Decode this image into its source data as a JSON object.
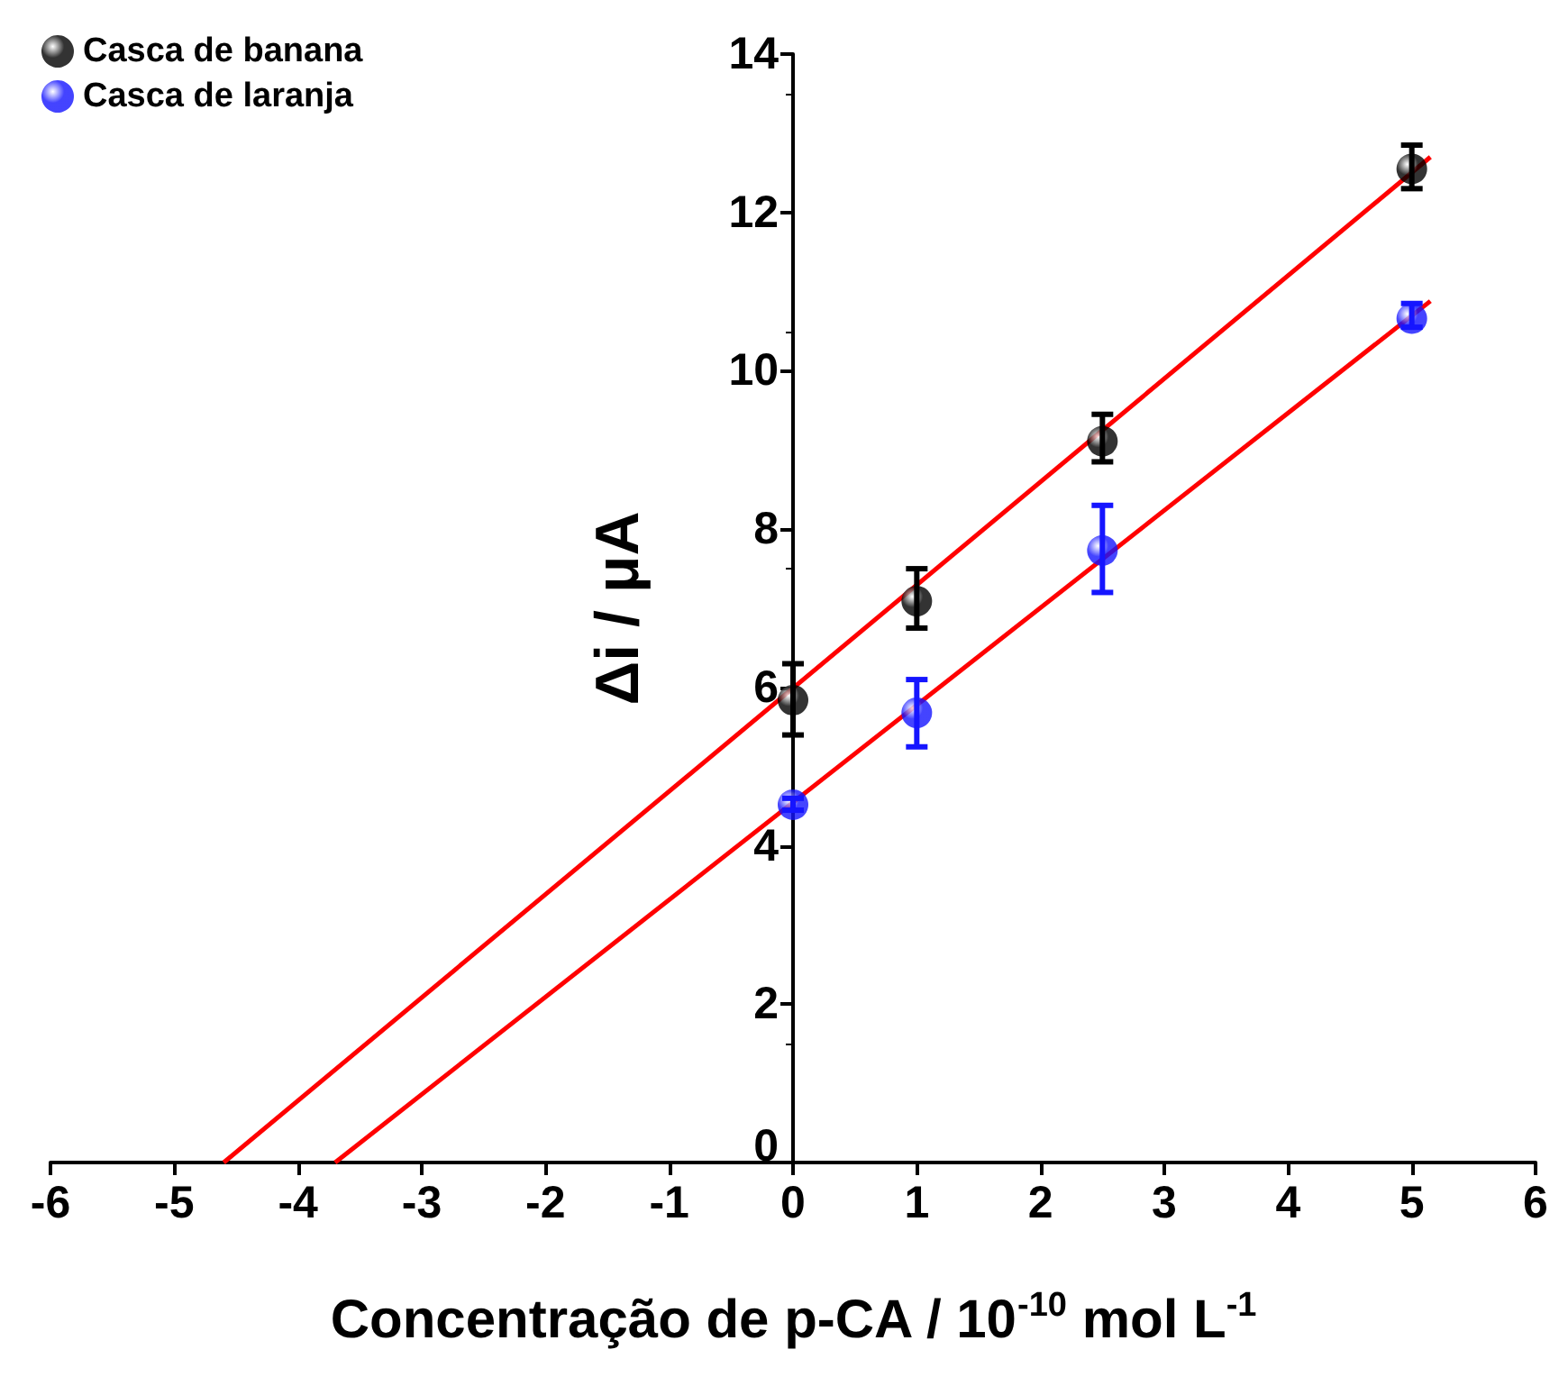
{
  "chart_data": {
    "type": "scatter",
    "xlabel": "Concentração de p-CA / 10$^{-10}$ mol L$^{-1}$",
    "ylabel": "Δi / μA",
    "x": [
      0,
      1,
      2.5,
      5
    ],
    "series": [
      {
        "name": "Casca de banana",
        "color": "#000000",
        "values": [
          5.84,
          7.09,
          9.11,
          12.55
        ],
        "errors": [
          [
            5.4,
            6.3
          ],
          [
            6.75,
            7.5
          ],
          [
            8.85,
            9.45
          ],
          [
            12.3,
            12.85
          ]
        ]
      },
      {
        "name": "Casca de laranja",
        "color": "#1515ff",
        "values": [
          4.52,
          5.68,
          7.73,
          10.66
        ],
        "errors": [
          [
            4.45,
            4.6
          ],
          [
            5.25,
            6.1
          ],
          [
            7.2,
            8.3
          ],
          [
            10.55,
            10.85
          ]
        ]
      },
      {
        "type": "line",
        "color": "#ff0000",
        "marker": "none",
        "x": [
          -4.6,
          5.15
        ],
        "values": [
          0,
          12.7
        ]
      },
      {
        "type": "line",
        "color": "#ff0000",
        "marker": "none",
        "x": [
          -3.7,
          5.15
        ],
        "values": [
          0,
          10.88
        ]
      }
    ],
    "xlim": [
      -6,
      6
    ],
    "xticks": [
      -6,
      -5,
      -4,
      -3,
      -2,
      -1,
      0,
      1,
      2,
      3,
      4,
      5,
      6
    ],
    "ylim": [
      0,
      14
    ],
    "yticks": [
      0,
      2,
      4,
      6,
      8,
      10,
      12,
      14
    ],
    "grid": false,
    "legend": "top left",
    "marker": "circle",
    "line_style": "solid"
  }
}
